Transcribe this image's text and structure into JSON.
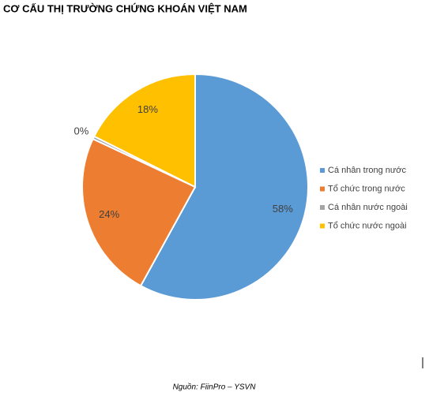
{
  "chart_data": {
    "type": "pie",
    "title": "CƠ CẤU THỊ TRƯỜNG CHỨNG KHOÁN VIỆT NAM",
    "categories": [
      "Cá nhân trong nước",
      "Tổ chức trong nước",
      "Cá nhân nước ngoài",
      "Tổ chức nước ngoài"
    ],
    "values": [
      58,
      24,
      0.4,
      17.6
    ],
    "value_labels": [
      "58%",
      "24%",
      "0%",
      "18%"
    ],
    "colors": [
      "#5b9bd5",
      "#ed7d31",
      "#a5a5a5",
      "#ffc000"
    ],
    "legend": "right",
    "source": "Nguồn: FiinPro – YSVN"
  }
}
